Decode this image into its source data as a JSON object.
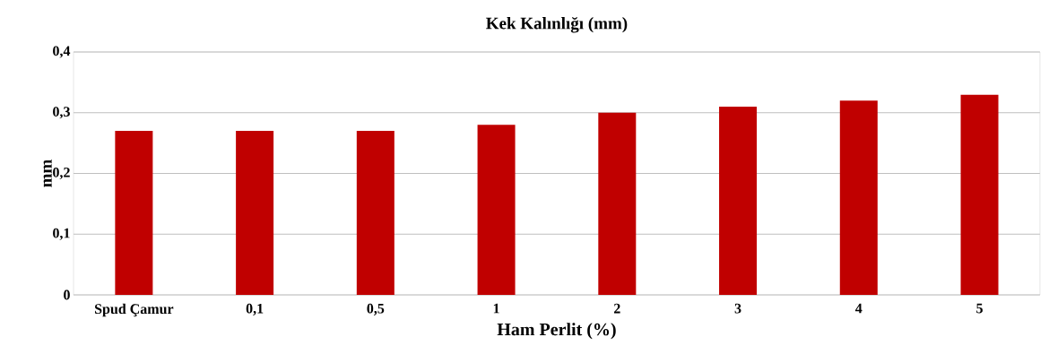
{
  "chart_data": {
    "type": "bar",
    "title": "Kek Kalınlığı (mm)",
    "xlabel": "Ham Perlit (%)",
    "ylabel": "mm",
    "categories": [
      "Spud Çamur",
      "0,1",
      "0,5",
      "1",
      "2",
      "3",
      "4",
      "5"
    ],
    "values": [
      0.27,
      0.27,
      0.27,
      0.28,
      0.3,
      0.31,
      0.32,
      0.33
    ],
    "color": "#c00000",
    "ylim": [
      0,
      0.4
    ],
    "yticks": [
      0,
      {
        "value": 0.1,
        "label": "0,1"
      },
      {
        "value": 0.2,
        "label": "0,2"
      },
      {
        "value": 0.3,
        "label": "0,3"
      },
      {
        "value": 0.4,
        "label": "0,4"
      }
    ],
    "grid": "y"
  }
}
